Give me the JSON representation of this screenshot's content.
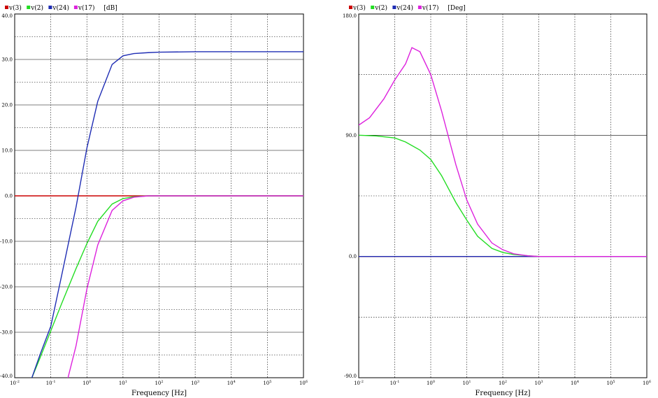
{
  "chart_data": [
    {
      "type": "line",
      "panel": "magnitude",
      "unit_label": "[dB]",
      "xlabel": "Frequency [Hz]",
      "x_scale": "log",
      "xlim": [
        0.01,
        1000000
      ],
      "ylim": [
        -40,
        40
      ],
      "y_ticks": [
        "40.0",
        "30.0",
        "20.0",
        "10.0",
        "0.0",
        "-10.0",
        "-20.0",
        "-30.0",
        "-40.0"
      ],
      "grid": true,
      "legend_position": "top-left",
      "series": [
        {
          "name": "v(3)",
          "color": "#cc0000",
          "x": [
            0.01,
            1000000
          ],
          "y": [
            0,
            0
          ]
        },
        {
          "name": "v(2)",
          "color": "#22dd22",
          "x": [
            0.025,
            0.03,
            0.05,
            0.1,
            0.2,
            0.5,
            1,
            2,
            5,
            10,
            20,
            50,
            100,
            1000,
            1000000
          ],
          "y": [
            -41.5,
            -40,
            -35.7,
            -29.7,
            -23.7,
            -16,
            -10.5,
            -5.6,
            -1.8,
            -0.6,
            -0.2,
            0,
            0,
            0,
            0
          ]
        },
        {
          "name": "v(24)",
          "color": "#1f2db4",
          "x": [
            0.025,
            0.03,
            0.05,
            0.1,
            0.2,
            0.5,
            1,
            2,
            5,
            10,
            20,
            50,
            100,
            1000,
            1000000
          ],
          "y": [
            -41.5,
            -40,
            -35,
            -28.7,
            -17.5,
            -2.5,
            10.5,
            20.8,
            28.9,
            30.8,
            31.3,
            31.5,
            31.6,
            31.7,
            31.7
          ]
        },
        {
          "name": "v(17)",
          "color": "#dd22dd",
          "x": [
            0.25,
            0.3,
            0.5,
            1,
            2,
            5,
            10,
            20,
            50,
            100,
            1000,
            1000000
          ],
          "y": [
            -41.5,
            -40,
            -33,
            -20.5,
            -10.8,
            -3.2,
            -1.1,
            -0.3,
            0,
            0,
            0,
            0
          ]
        }
      ]
    },
    {
      "type": "line",
      "panel": "phase",
      "unit_label": "[Deg]",
      "xlabel": "Frequency [Hz]",
      "x_scale": "log",
      "xlim": [
        0.01,
        1000000
      ],
      "ylim": [
        -90,
        180
      ],
      "y_ticks": [
        "180.0",
        "90.0",
        "0.0",
        "-90.0"
      ],
      "grid": true,
      "legend_position": "top-left",
      "series": [
        {
          "name": "v(3)",
          "color": "#cc0000",
          "x": [
            0.01,
            1000000
          ],
          "y": [
            0,
            0
          ]
        },
        {
          "name": "v(2)",
          "color": "#22dd22",
          "x": [
            0.01,
            0.03,
            0.1,
            0.2,
            0.5,
            1,
            2,
            5,
            10,
            20,
            50,
            100,
            200,
            500,
            1000,
            1000000
          ],
          "y": [
            90,
            89.5,
            88,
            85,
            79,
            72,
            60,
            40,
            27,
            15,
            6,
            3,
            1.5,
            0.5,
            0,
            0
          ]
        },
        {
          "name": "v(24)",
          "color": "#1f2db4",
          "x": [
            0.01,
            1000000
          ],
          "y": [
            0,
            0
          ]
        },
        {
          "name": "v(17)",
          "color": "#dd22dd",
          "x": [
            0.01,
            0.02,
            0.05,
            0.1,
            0.2,
            0.3,
            0.5,
            1,
            2,
            5,
            10,
            20,
            50,
            100,
            200,
            500,
            1000,
            1000000
          ],
          "y": [
            97.5,
            103,
            117,
            131,
            143,
            155,
            152,
            135,
            108,
            68,
            42,
            24,
            10,
            5,
            2,
            0.5,
            0,
            0
          ]
        }
      ]
    }
  ]
}
